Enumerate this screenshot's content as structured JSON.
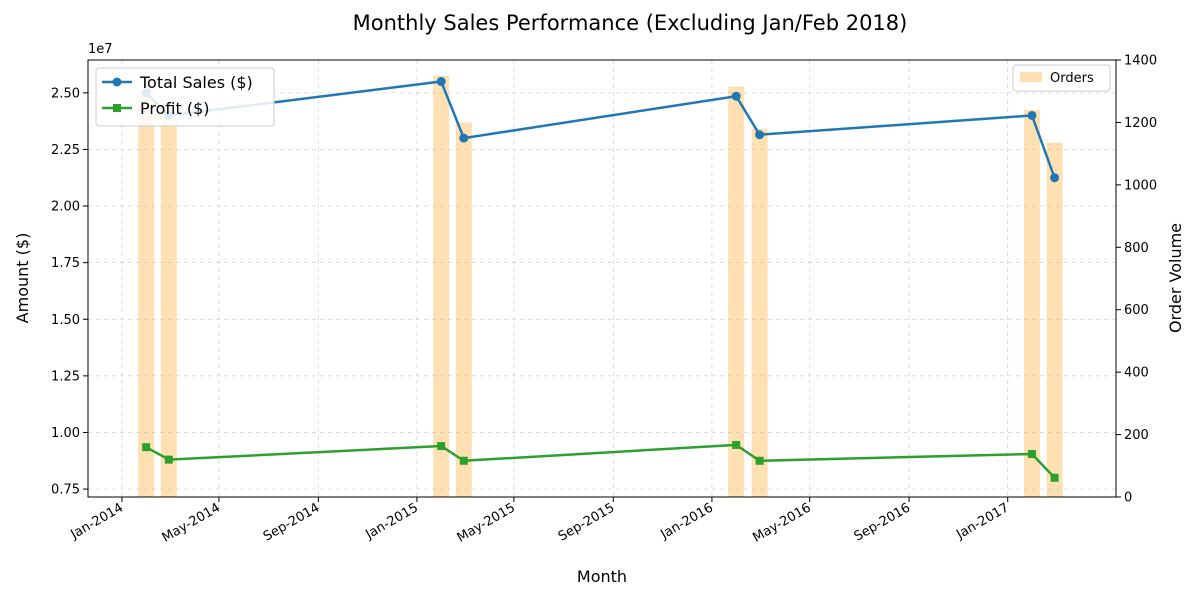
{
  "chart_data": {
    "type": "line",
    "title": "Monthly Sales Performance (Excluding Jan/Feb 2018)",
    "xlabel": "Month",
    "ylabel": "Amount ($)",
    "y2label": "Order Volume",
    "y_multiplier_label": "1e7",
    "x_date_range": [
      "2013-11-20",
      "2017-05-15"
    ],
    "ylim": [
      7150000,
      26450000
    ],
    "y2lim": [
      0,
      1400
    ],
    "x_ticks": [
      {
        "date": "2014-01-01",
        "label": "Jan-2014"
      },
      {
        "date": "2014-05-01",
        "label": "May-2014"
      },
      {
        "date": "2014-09-01",
        "label": "Sep-2014"
      },
      {
        "date": "2015-01-01",
        "label": "Jan-2015"
      },
      {
        "date": "2015-05-01",
        "label": "May-2015"
      },
      {
        "date": "2015-09-01",
        "label": "Sep-2015"
      },
      {
        "date": "2016-01-01",
        "label": "Jan-2016"
      },
      {
        "date": "2016-05-01",
        "label": "May-2016"
      },
      {
        "date": "2016-09-01",
        "label": "Sep-2016"
      },
      {
        "date": "2017-01-01",
        "label": "Jan-2017"
      }
    ],
    "y_ticks": [
      {
        "value": 7500000,
        "label": "0.75"
      },
      {
        "value": 10000000,
        "label": "1.00"
      },
      {
        "value": 12500000,
        "label": "1.25"
      },
      {
        "value": 15000000,
        "label": "1.50"
      },
      {
        "value": 17500000,
        "label": "1.75"
      },
      {
        "value": 20000000,
        "label": "2.00"
      },
      {
        "value": 22500000,
        "label": "2.25"
      },
      {
        "value": 25000000,
        "label": "2.50"
      }
    ],
    "y2_ticks": [
      {
        "value": 0,
        "label": "0"
      },
      {
        "value": 200,
        "label": "200"
      },
      {
        "value": 400,
        "label": "400"
      },
      {
        "value": 600,
        "label": "600"
      },
      {
        "value": 800,
        "label": "800"
      },
      {
        "value": 1000,
        "label": "1000"
      },
      {
        "value": 1200,
        "label": "1200"
      },
      {
        "value": 1400,
        "label": "1400"
      }
    ],
    "dates": [
      "2014-01-31",
      "2014-02-28",
      "2015-01-31",
      "2015-02-28",
      "2016-01-31",
      "2016-02-29",
      "2017-01-31",
      "2017-02-28"
    ],
    "series": [
      {
        "name": "Total Sales ($)",
        "marker": "circle",
        "color": "#1f77b4",
        "axis": "left",
        "values": [
          25000000,
          24000000,
          25500000,
          23000000,
          24850000,
          23150000,
          24000000,
          21250000
        ]
      },
      {
        "name": "Profit ($)",
        "marker": "square",
        "color": "#2ca02c",
        "axis": "left",
        "values": [
          9350000,
          8800000,
          9400000,
          8750000,
          9450000,
          8750000,
          9050000,
          8000000
        ]
      },
      {
        "name": "Orders",
        "type": "bar",
        "color": "#ffe0b2",
        "axis": "right",
        "values": [
          1310,
          1240,
          1350,
          1200,
          1315,
          1180,
          1240,
          1135
        ]
      }
    ],
    "grid": true,
    "legends": {
      "lines": "top-left",
      "bars": "top-right"
    }
  }
}
